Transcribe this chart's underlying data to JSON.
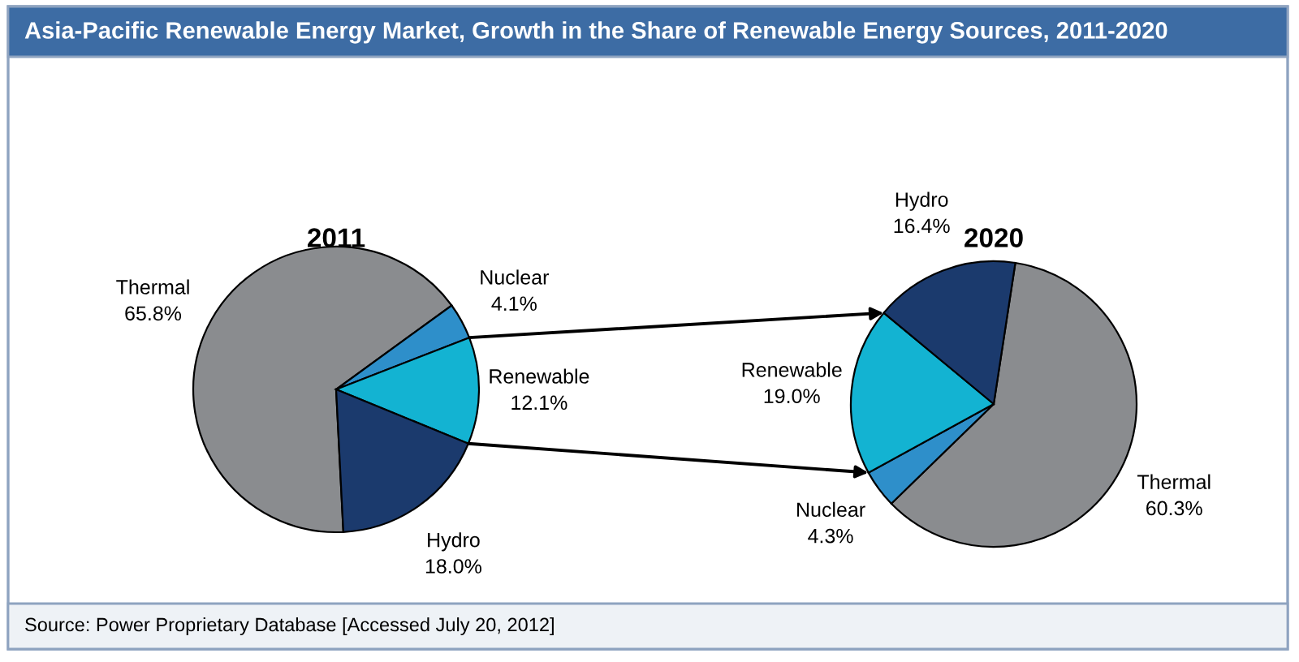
{
  "chart_data": [
    {
      "type": "other",
      "title": "Asia-Pacific Renewable Energy Market, Growth in the Share of Renewable Energy Sources, 2011-2020",
      "annotations": [
        "Source: Power Proprietary Database [Accessed July 20, 2012]"
      ]
    },
    {
      "type": "pie",
      "title": "2011",
      "categories": [
        "Thermal",
        "Nuclear",
        "Renewable",
        "Hydro"
      ],
      "values": [
        65.8,
        4.1,
        12.1,
        18.0
      ],
      "colors": [
        "#8a8c8f",
        "#2e8fca",
        "#13b3d2",
        "#1b3a6d"
      ],
      "value_labels": [
        "65.8%",
        "4.1%",
        "12.1%",
        "18.0%"
      ]
    },
    {
      "type": "pie",
      "title": "2020",
      "categories": [
        "Thermal",
        "Nuclear",
        "Renewable",
        "Hydro"
      ],
      "values": [
        60.3,
        4.3,
        19.0,
        16.4
      ],
      "colors": [
        "#8a8c8f",
        "#2e8fca",
        "#13b3d2",
        "#1b3a6d"
      ],
      "value_labels": [
        "60.3%",
        "4.3%",
        "19.0%",
        "16.4%"
      ]
    }
  ]
}
